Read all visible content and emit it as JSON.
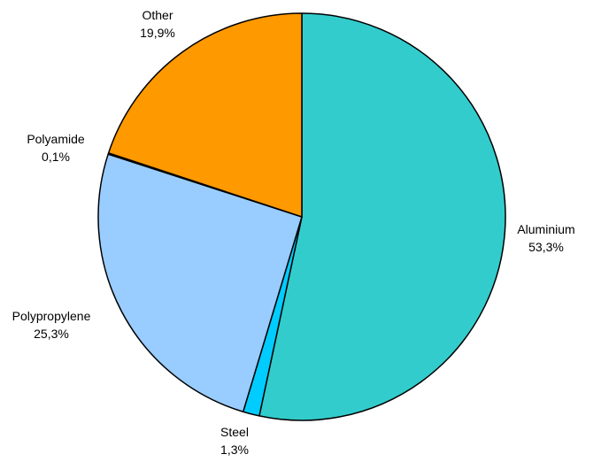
{
  "chart_data": {
    "type": "pie",
    "title": "",
    "slices": [
      {
        "label": "Aluminium",
        "value_text": "53,3%",
        "value": 53.3,
        "color": "#33CCCC"
      },
      {
        "label": "Steel",
        "value_text": "1,3%",
        "value": 1.3,
        "color": "#00CCFF"
      },
      {
        "label": "Polypropylene",
        "value_text": "25,3%",
        "value": 25.3,
        "color": "#99CCFF"
      },
      {
        "label": "Polyamide",
        "value_text": "0,1%",
        "value": 0.1,
        "color": "#3366FF"
      },
      {
        "label": "Other",
        "value_text": "19,9%",
        "value": 19.9,
        "color": "#FF9900"
      }
    ],
    "start_angle": "12 o'clock",
    "direction": "clockwise",
    "outline_color": "#000000"
  }
}
